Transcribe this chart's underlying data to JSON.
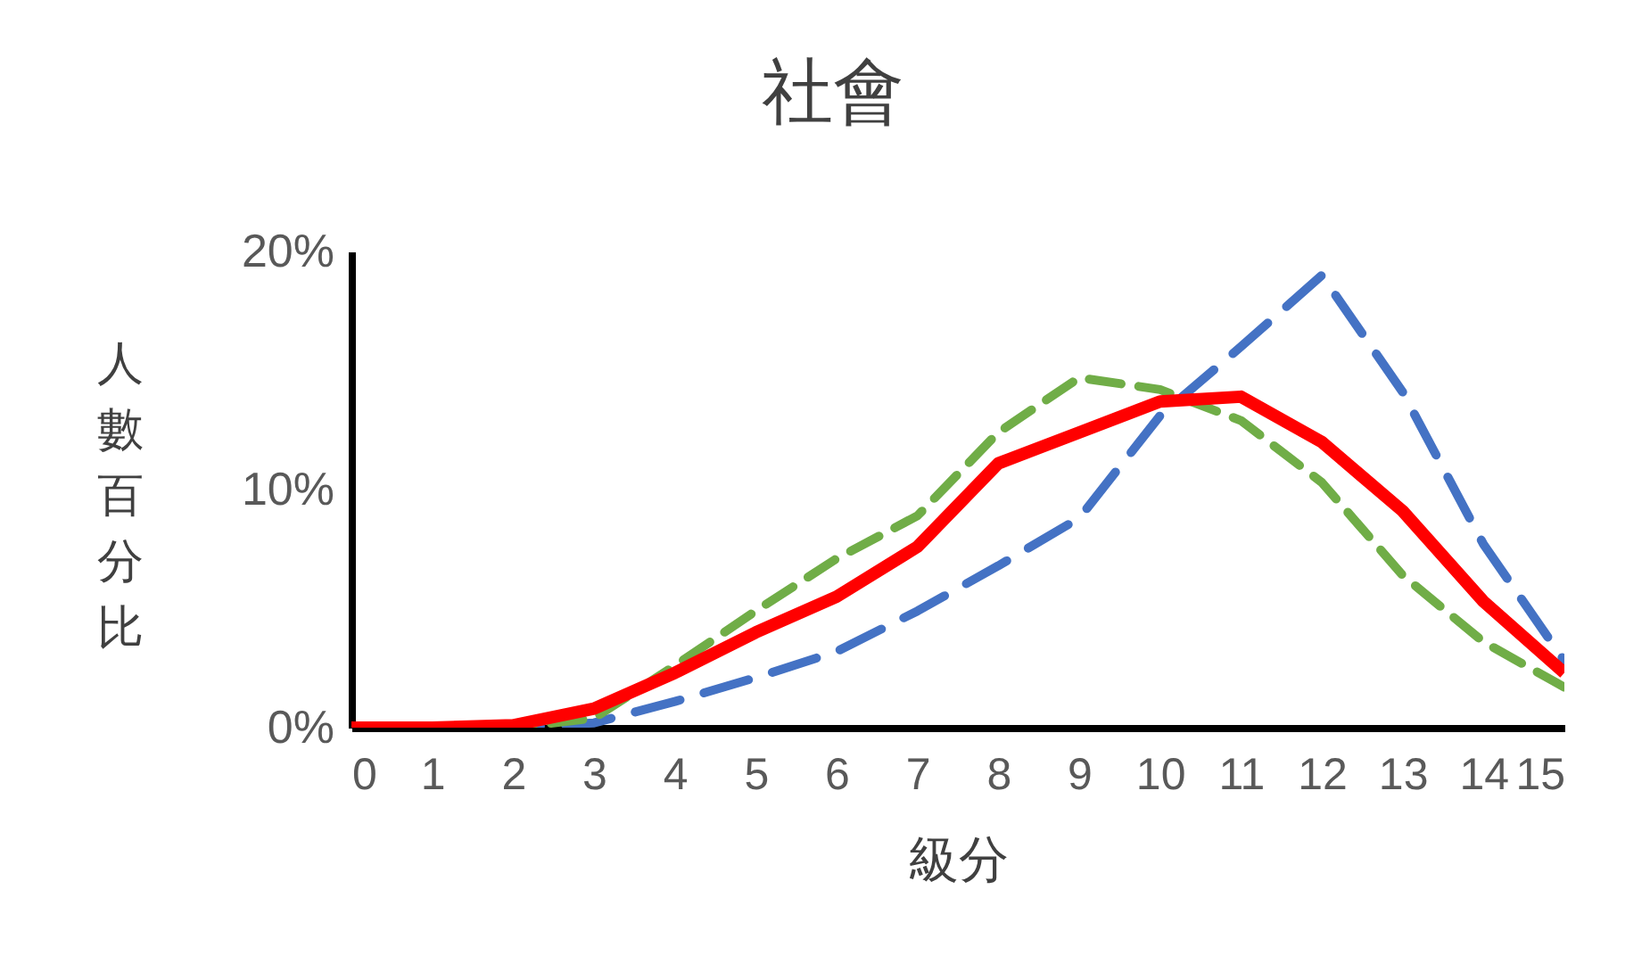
{
  "chart_data": {
    "type": "line",
    "title": "社會",
    "xlabel": "級分",
    "ylabel": "人數百分比",
    "x": [
      0,
      1,
      2,
      3,
      4,
      5,
      6,
      7,
      8,
      9,
      10,
      11,
      12,
      13,
      14,
      15
    ],
    "xlim": [
      0,
      15
    ],
    "xticks": [
      0,
      1,
      2,
      3,
      4,
      5,
      6,
      7,
      8,
      9,
      10,
      11,
      12,
      13,
      14,
      15
    ],
    "ylim": [
      0,
      20
    ],
    "yticks": [
      {
        "value": 0,
        "label": "0%"
      },
      {
        "value": 10,
        "label": "10%"
      },
      {
        "value": 20,
        "label": "20%"
      }
    ],
    "grid": false,
    "marker": "none",
    "series": [
      {
        "color": "#4472c4",
        "line_style": "dashed",
        "values": [
          0,
          0,
          0,
          0.2,
          1.1,
          2.1,
          3.2,
          4.9,
          6.8,
          8.8,
          13.1,
          16.0,
          19.0,
          14.1,
          7.7,
          2.8
        ]
      },
      {
        "color": "#70ad47",
        "line_style": "dashed",
        "values": [
          0,
          0,
          0,
          0.4,
          2.6,
          4.9,
          7.1,
          8.9,
          12.4,
          14.7,
          14.2,
          12.9,
          10.3,
          6.4,
          3.6,
          1.7
        ]
      },
      {
        "color": "#ff0000",
        "line_style": "solid",
        "values": [
          0,
          0,
          0.1,
          0.8,
          2.3,
          4.0,
          5.5,
          7.6,
          11.1,
          12.4,
          13.7,
          13.9,
          12.0,
          9.1,
          5.3,
          2.3
        ]
      }
    ]
  }
}
